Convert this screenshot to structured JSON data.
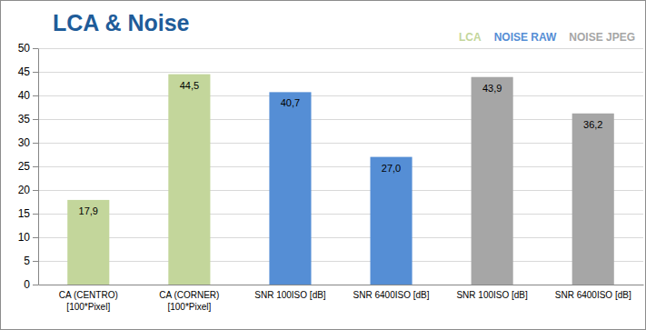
{
  "chart_data": {
    "type": "bar",
    "title": "LCA & Noise",
    "categories": [
      "CA (CENTRO)\n[100*Pixel]",
      "CA (CORNER)\n[100*Pixel]",
      "SNR 100ISO [dB]",
      "SNR 6400ISO [dB]",
      "SNR 100ISO [dB]",
      "SNR 6400ISO [dB]"
    ],
    "series": [
      {
        "name": "LCA",
        "color": "#c3d69b",
        "values": [
          17.9,
          44.5,
          null,
          null,
          null,
          null
        ],
        "value_labels": [
          "17,9",
          "44,5",
          null,
          null,
          null,
          null
        ]
      },
      {
        "name": "NOISE RAW",
        "color": "#558ed5",
        "values": [
          null,
          null,
          40.7,
          27.0,
          null,
          null
        ],
        "value_labels": [
          null,
          null,
          "40,7",
          "27,0",
          null,
          null
        ]
      },
      {
        "name": "NOISE JPEG",
        "color": "#a6a6a6",
        "values": [
          null,
          null,
          null,
          null,
          43.9,
          36.2
        ],
        "value_labels": [
          null,
          null,
          null,
          null,
          "43,9",
          "36,2"
        ]
      }
    ],
    "ylim": [
      0,
      50
    ],
    "yticks": [
      0,
      5,
      10,
      15,
      20,
      25,
      30,
      35,
      40,
      45,
      50
    ],
    "grid": true,
    "legend": "top-right",
    "data_labels": true
  }
}
